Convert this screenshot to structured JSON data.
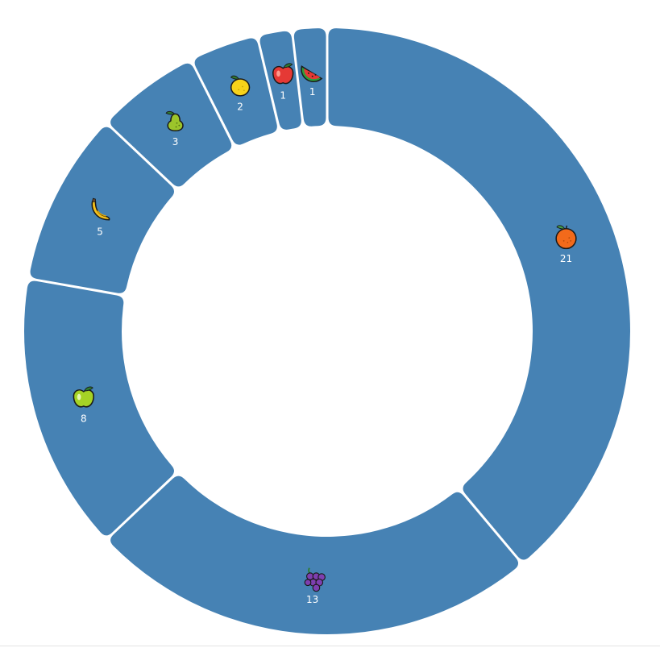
{
  "chart_data": {
    "type": "pie",
    "variant": "donut",
    "color": "#4682b4",
    "label_color": "#ffffff",
    "start": "top, clockwise",
    "slices": [
      {
        "name": "orange",
        "icon": "orange-fruit-icon",
        "value": 21
      },
      {
        "name": "grapes",
        "icon": "grapes-icon",
        "value": 13
      },
      {
        "name": "apple-green",
        "icon": "green-apple-icon",
        "value": 8
      },
      {
        "name": "banana",
        "icon": "banana-icon",
        "value": 5
      },
      {
        "name": "pear",
        "icon": "pear-icon",
        "value": 3
      },
      {
        "name": "lemon",
        "icon": "lemon-icon",
        "value": 2
      },
      {
        "name": "apple-red",
        "icon": "red-apple-icon",
        "value": 1
      },
      {
        "name": "watermelon",
        "icon": "watermelon-icon",
        "value": 1
      }
    ],
    "labels": [
      "21",
      "13",
      "8",
      "5",
      "3",
      "2",
      "1",
      "1"
    ]
  }
}
